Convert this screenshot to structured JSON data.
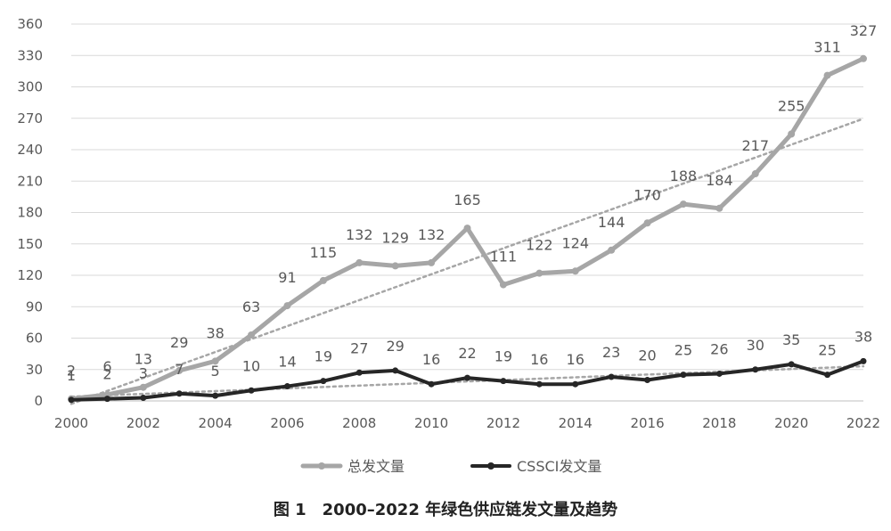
{
  "chart_data": {
    "type": "line",
    "x": [
      2000,
      2001,
      2002,
      2003,
      2004,
      2005,
      2006,
      2007,
      2008,
      2009,
      2010,
      2011,
      2012,
      2013,
      2014,
      2015,
      2016,
      2017,
      2018,
      2019,
      2020,
      2021,
      2022
    ],
    "x_tick_labels": [
      "2000",
      "2002",
      "2004",
      "2006",
      "2008",
      "2010",
      "2012",
      "2014",
      "2016",
      "2018",
      "2020",
      "2022"
    ],
    "y_tick_labels": [
      "0",
      "30",
      "60",
      "90",
      "120",
      "150",
      "180",
      "210",
      "240",
      "270",
      "300",
      "330",
      "360"
    ],
    "xlim": [
      2000,
      2022
    ],
    "ylim": [
      0,
      360
    ],
    "grid": true,
    "legend_position": "bottom",
    "title": "图 1　2000–2022 年绿色供应链发文量及趋势",
    "xlabel": "",
    "ylabel": "",
    "series": [
      {
        "name": "总发文量",
        "color": "#a6a6a6",
        "trendline": "linear",
        "values": [
          2,
          6,
          13,
          29,
          38,
          63,
          91,
          115,
          132,
          129,
          132,
          165,
          111,
          122,
          124,
          144,
          170,
          188,
          184,
          217,
          255,
          311,
          327
        ],
        "labels": [
          "2",
          "6",
          "13",
          "29",
          "38",
          "63",
          "91",
          "115",
          "132",
          "129",
          "132",
          "165",
          "111",
          "122",
          "124",
          "144",
          "170",
          "188",
          "184",
          "217",
          "255",
          "311",
          "327"
        ]
      },
      {
        "name": "CSSCI发文量",
        "color": "#262626",
        "trendline": "linear",
        "values": [
          1,
          2,
          3,
          7,
          5,
          10,
          14,
          19,
          27,
          29,
          16,
          22,
          19,
          16,
          16,
          23,
          20,
          25,
          26,
          30,
          35,
          25,
          38
        ],
        "labels": [
          "1",
          "2",
          "3",
          "7",
          "5",
          "10",
          "14",
          "19",
          "27",
          "29",
          "16",
          "22",
          "19",
          "16",
          "16",
          "23",
          "20",
          "25",
          "26",
          "30",
          "35",
          "25",
          "38"
        ]
      }
    ]
  }
}
